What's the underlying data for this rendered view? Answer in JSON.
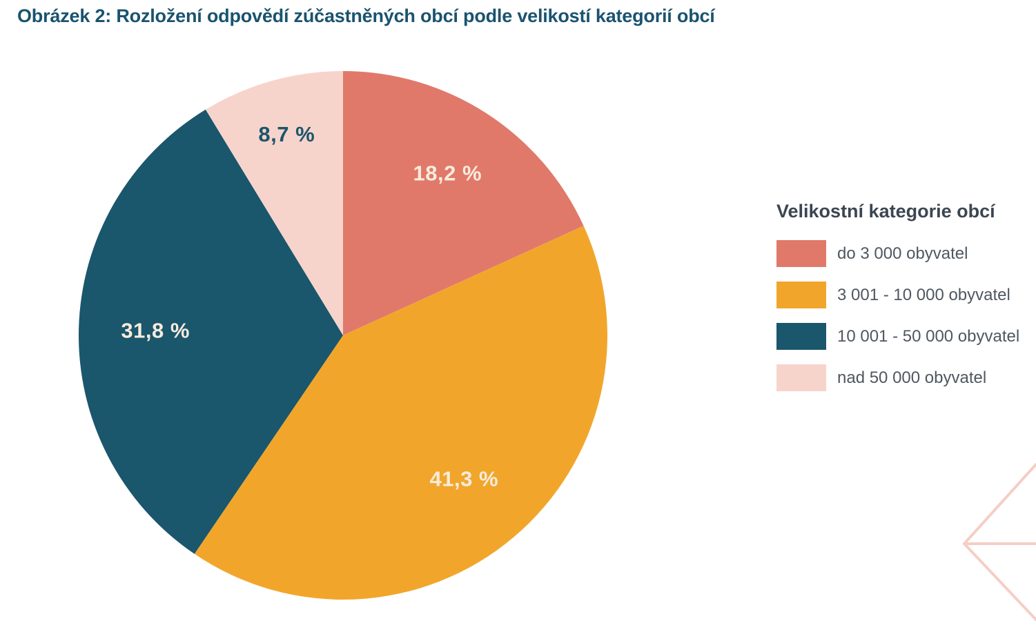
{
  "title": "Obrázek 2: Rozložení odpovědí zúčastněných obcí podle velikostí kategorií obcí",
  "chart_data": {
    "type": "pie",
    "title": "Obrázek 2: Rozložení odpovědí zúčastněných obcí podle velikostí kategorií obcí",
    "categories": [
      "do 3 000 obyvatel",
      "3 001 - 10 000 obyvatel",
      "10 001 - 50 000 obyvatel",
      "nad 50 000 obyvatel"
    ],
    "values": [
      18.2,
      41.3,
      31.8,
      8.7
    ],
    "value_labels": [
      "18,2 %",
      "41,3 %",
      "31,8 %",
      "8,7 %"
    ],
    "unit": "%",
    "colors": [
      "#e1796b",
      "#f1a62b",
      "#1a566c",
      "#f7d4cb"
    ],
    "label_colors": [
      "#f7ecdc",
      "#f7ecdc",
      "#f7ecdc",
      "#1a566c"
    ],
    "label_radius_frac": [
      0.73,
      0.71,
      0.71,
      0.79
    ],
    "start_angle_deg": 0,
    "direction": "clockwise",
    "legend_position": "right",
    "legend_title": "Velikostní kategorie obcí"
  },
  "legend": {
    "title": "Velikostní kategorie obcí",
    "items": [
      {
        "label": "do 3 000 obyvatel",
        "color": "#e1796b"
      },
      {
        "label": "3 001 - 10 000 obyvatel",
        "color": "#f1a62b"
      },
      {
        "label": "10 001 - 50 000 obyvatel",
        "color": "#1a566c"
      },
      {
        "label": "nad 50 000 obyvatel",
        "color": "#f7d4cb"
      }
    ]
  },
  "decoration": {
    "name": "chevron-left-lines",
    "color": "#f5cec5"
  }
}
